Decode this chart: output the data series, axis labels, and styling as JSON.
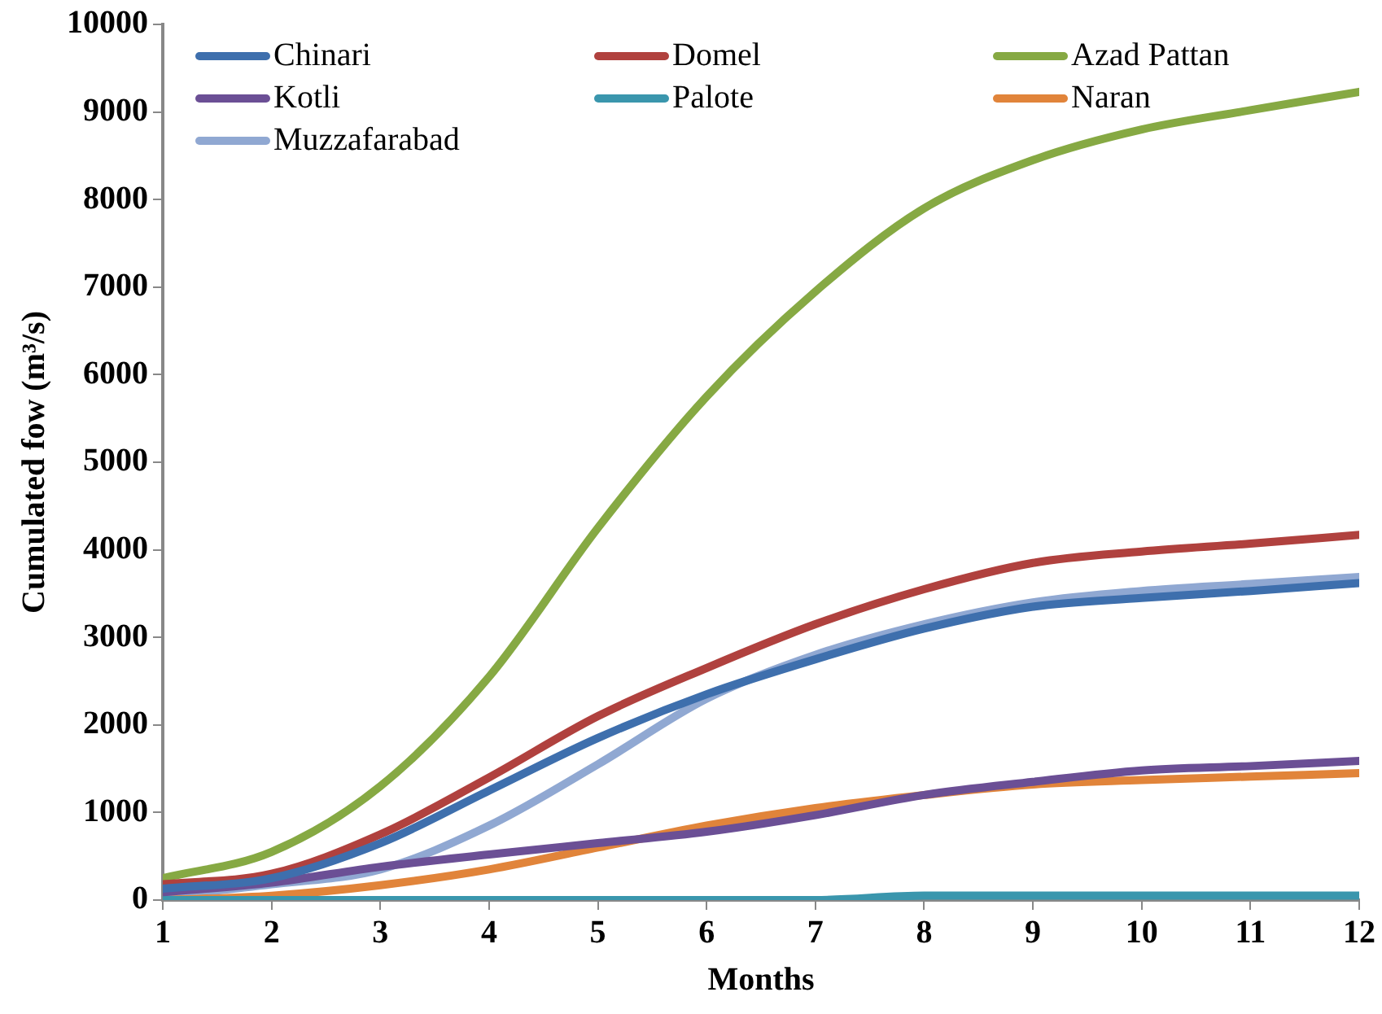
{
  "chart_data": {
    "type": "line",
    "xlabel": "Months",
    "ylabel": "Cumulated fow (m³/s)",
    "x": [
      1,
      2,
      3,
      4,
      5,
      6,
      7,
      8,
      9,
      10,
      11,
      12
    ],
    "xlim": [
      1,
      12
    ],
    "xticks": [
      1,
      2,
      3,
      4,
      5,
      6,
      7,
      8,
      9,
      10,
      11,
      12
    ],
    "ylim": [
      0,
      10000
    ],
    "yticks": [
      0,
      1000,
      2000,
      3000,
      4000,
      5000,
      6000,
      7000,
      8000,
      9000,
      10000
    ],
    "grid": false,
    "legend": "top left",
    "marker": "none",
    "line_style": "solid",
    "series": [
      {
        "name": "Chinari",
        "color": "#3e6fad",
        "values": [
          130,
          250,
          650,
          1250,
          1850,
          2350,
          2750,
          3100,
          3350,
          3450,
          3530,
          3620
        ]
      },
      {
        "name": "Domel",
        "color": "#b0413e",
        "values": [
          180,
          300,
          750,
          1400,
          2100,
          2650,
          3150,
          3550,
          3850,
          3980,
          4070,
          4170
        ]
      },
      {
        "name": "Azad Pattan",
        "color": "#86a943",
        "values": [
          250,
          550,
          1300,
          2550,
          4250,
          5750,
          6950,
          7900,
          8450,
          8800,
          9020,
          9230
        ]
      },
      {
        "name": "Kotli",
        "color": "#6b4f95",
        "values": [
          90,
          200,
          380,
          520,
          650,
          780,
          970,
          1200,
          1350,
          1480,
          1530,
          1590
        ]
      },
      {
        "name": "Palote",
        "color": "#3a96ad",
        "values": [
          0,
          0,
          0,
          0,
          0,
          0,
          0,
          50,
          50,
          50,
          50,
          50
        ]
      },
      {
        "name": "Naran",
        "color": "#e1843a",
        "values": [
          0,
          50,
          170,
          350,
          600,
          850,
          1050,
          1200,
          1320,
          1370,
          1410,
          1450
        ]
      },
      {
        "name": "Muzzafarabad",
        "color": "#90a8d2",
        "values": [
          40,
          180,
          350,
          850,
          1550,
          2300,
          2800,
          3150,
          3400,
          3530,
          3610,
          3690
        ]
      }
    ]
  }
}
